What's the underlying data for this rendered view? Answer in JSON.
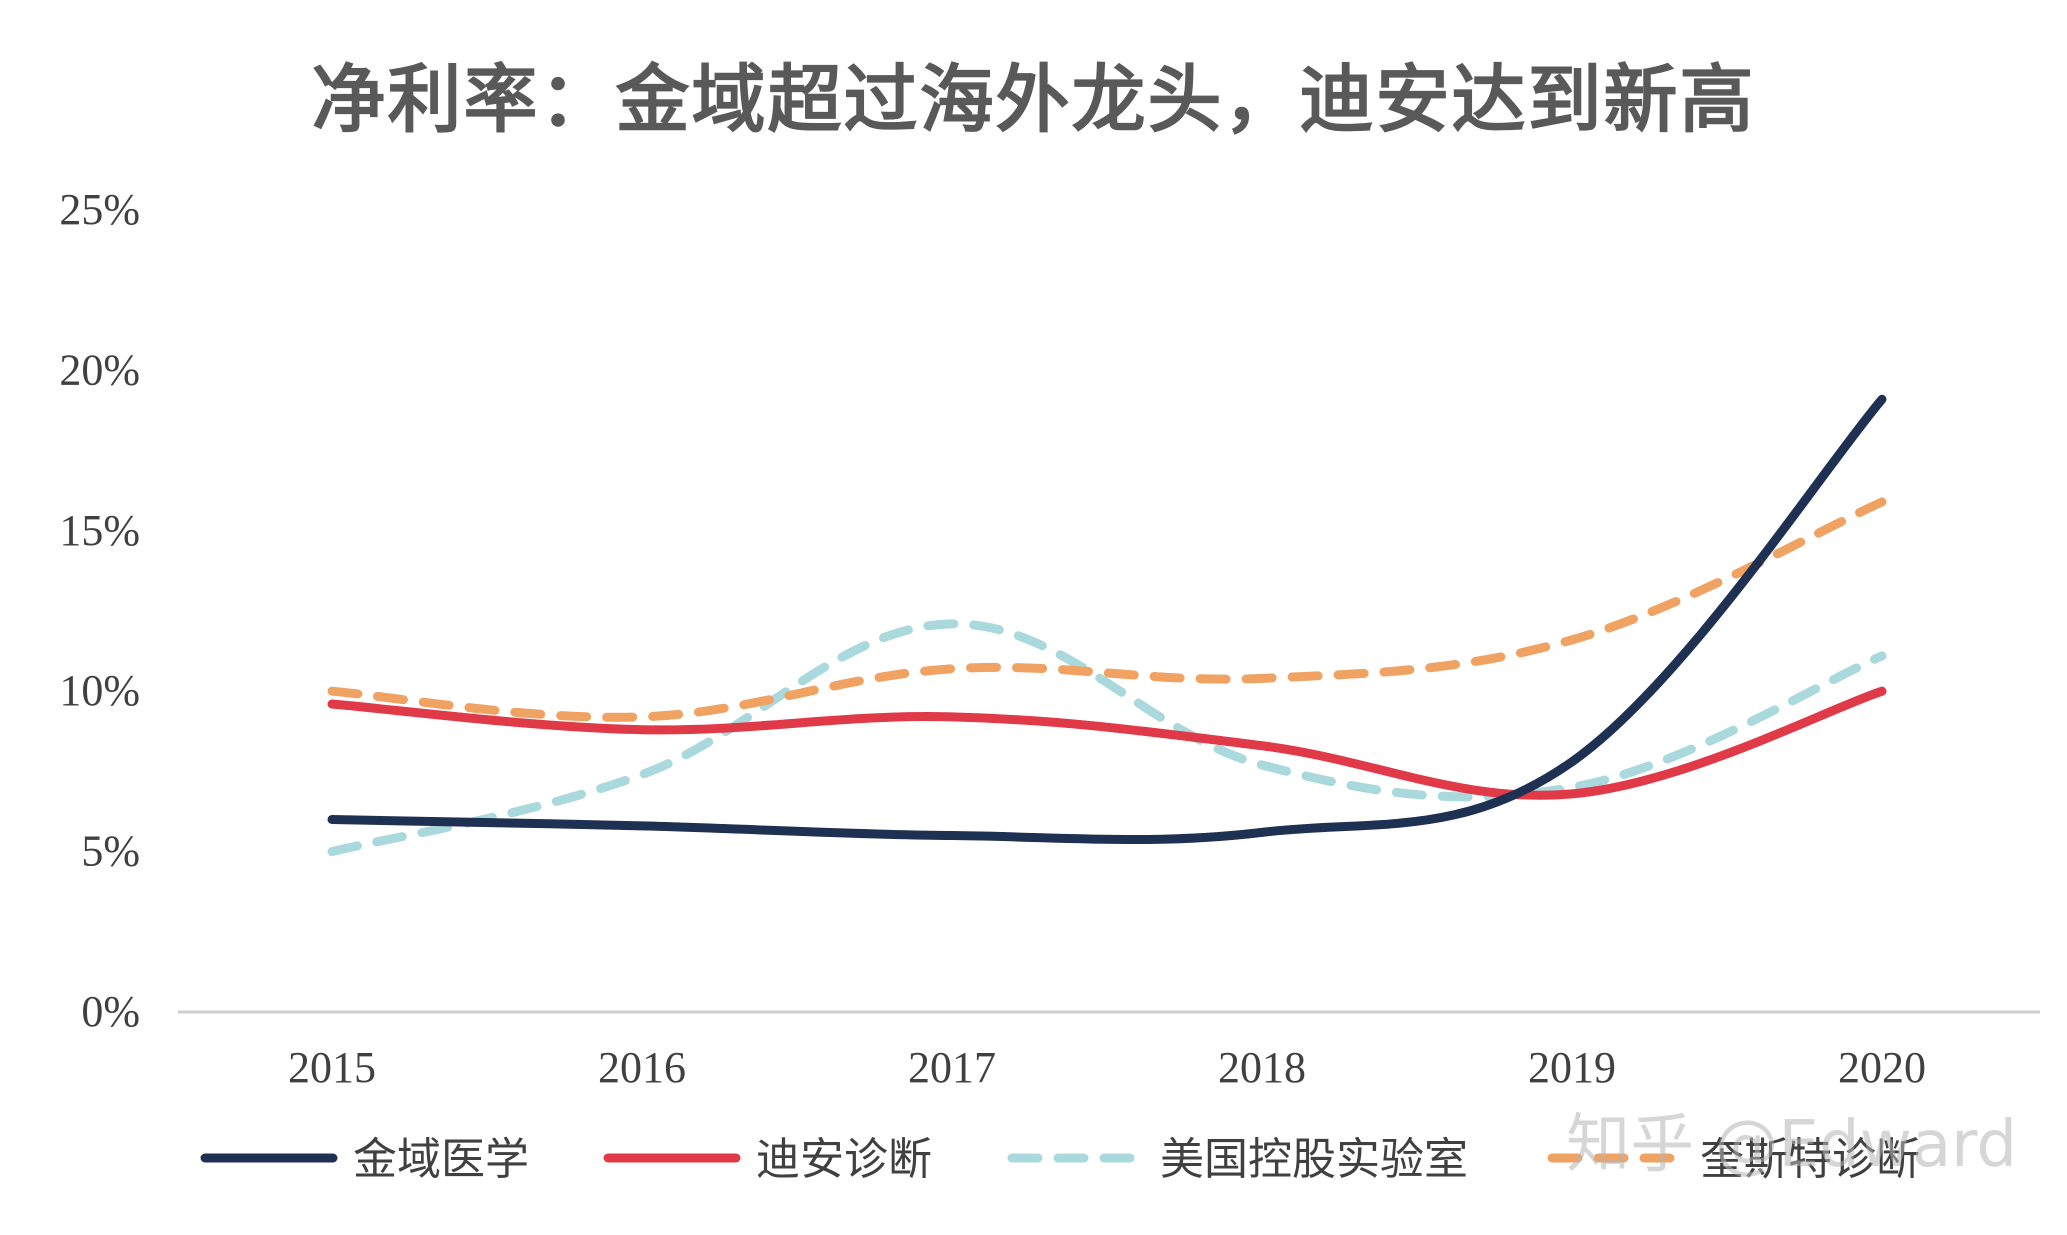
{
  "watermark": "知乎 @Edward",
  "chart_data": {
    "type": "line",
    "title": "净利率：金域超过海外龙头，迪安达到新高",
    "xlabel": "",
    "ylabel": "",
    "categories": [
      "2015",
      "2016",
      "2017",
      "2018",
      "2019",
      "2020"
    ],
    "ylim": [
      0,
      25
    ],
    "yticks": [
      "0%",
      "5%",
      "10%",
      "15%",
      "20%",
      "25%"
    ],
    "grid": false,
    "legend_position": "bottom",
    "series": [
      {
        "name": "金域医学",
        "values": [
          6.0,
          5.8,
          5.5,
          5.6,
          7.8,
          19.1
        ],
        "color": "#1f3152",
        "dash": "solid"
      },
      {
        "name": "迪安诊断",
        "values": [
          9.6,
          8.8,
          9.2,
          8.3,
          6.8,
          10.0
        ],
        "color": "#e03a48",
        "dash": "solid"
      },
      {
        "name": "美国控股实验室",
        "values": [
          5.0,
          7.4,
          12.1,
          7.7,
          7.0,
          11.1
        ],
        "color": "#a9d9dc",
        "dash": "dashed"
      },
      {
        "name": "奎斯特诊断",
        "values": [
          10.0,
          9.2,
          10.7,
          10.4,
          11.6,
          15.9
        ],
        "color": "#f0a262",
        "dash": "dashed"
      }
    ]
  }
}
